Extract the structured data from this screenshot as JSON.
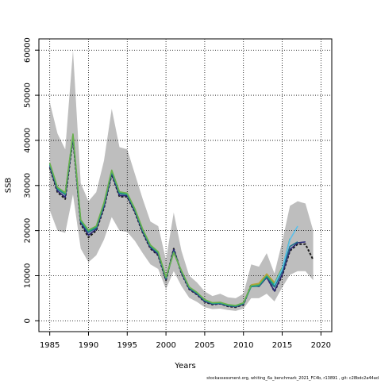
{
  "chart_data": {
    "type": "line",
    "xlabel": "Years",
    "ylabel": "SSB",
    "xlim": [
      1983.6,
      2021.4
    ],
    "ylim": [
      -2400,
      62500
    ],
    "x_ticks": [
      1985,
      1990,
      1995,
      2000,
      2005,
      2010,
      2015,
      2020
    ],
    "y_ticks": [
      0,
      10000,
      20000,
      30000,
      40000,
      50000,
      60000
    ],
    "grid": true,
    "grid_style": "dotted",
    "footnote": "stockassessment.org, whiting_6a_benchmark_2021_FC4b, r13891 , git: c28bdc2a44ad",
    "confidence_band": {
      "color": "#bebebe",
      "years": [
        1985,
        1986,
        1987,
        1988,
        1989,
        1990,
        1991,
        1992,
        1993,
        1994,
        1995,
        1996,
        1997,
        1998,
        1999,
        2000,
        2001,
        2002,
        2003,
        2004,
        2005,
        2006,
        2007,
        2008,
        2009,
        2010,
        2011,
        2012,
        2013,
        2014,
        2015,
        2016,
        2017,
        2018,
        2019
      ],
      "upper": [
        48500,
        41500,
        38000,
        60000,
        30500,
        26500,
        28500,
        35500,
        47000,
        38500,
        38000,
        32500,
        27000,
        22000,
        21000,
        13500,
        24000,
        15500,
        10000,
        8500,
        6500,
        5500,
        6000,
        5200,
        5000,
        6000,
        12500,
        12000,
        15000,
        10500,
        17500,
        25500,
        26500,
        26000,
        20000
      ],
      "lower": [
        24500,
        20000,
        19500,
        28000,
        16000,
        13000,
        14500,
        18000,
        23000,
        20000,
        19700,
        17700,
        15000,
        12500,
        11500,
        7000,
        11000,
        7700,
        5100,
        4200,
        3000,
        2600,
        2700,
        2400,
        2200,
        2700,
        5000,
        5000,
        6000,
        4300,
        7400,
        10200,
        11000,
        11000,
        9000
      ]
    },
    "series": [
      {
        "color": "#1a1a1a",
        "x": [
          1985,
          1986,
          1987,
          1988,
          1989,
          1990,
          1991,
          1992,
          1993,
          1994,
          1995,
          1996,
          1997,
          1998,
          1999,
          2000,
          2001,
          2002,
          2003,
          2004,
          2005,
          2006,
          2007,
          2008,
          2009,
          2010,
          2011,
          2012,
          2013,
          2014,
          2015,
          2016,
          2017,
          2018,
          2019
        ],
        "y": [
          34000,
          28500,
          27000,
          40500,
          21500,
          18500,
          20000,
          25000,
          32500,
          27500,
          27500,
          24000,
          19500,
          16000,
          14500,
          9000,
          16000,
          10500,
          7000,
          5800,
          4200,
          3600,
          3800,
          3200,
          3000,
          3600,
          8000,
          7800,
          9800,
          6500,
          10000,
          15500,
          17000,
          17000,
          13500
        ]
      },
      {
        "color": "#2c2a7a",
        "x": [
          1985,
          1986,
          1987,
          1988,
          1989,
          1990,
          1991,
          1992,
          1993,
          1994,
          1995,
          1996,
          1997,
          1998,
          1999,
          2000,
          2001,
          2002,
          2003,
          2004,
          2005,
          2006,
          2007,
          2008,
          2009,
          2010,
          2011,
          2012,
          2013,
          2014,
          2015,
          2016,
          2017,
          2018
        ],
        "y": [
          34300,
          28800,
          27400,
          40800,
          21800,
          19000,
          20300,
          25300,
          32700,
          27800,
          27700,
          24200,
          19700,
          16200,
          14700,
          9200,
          15800,
          10700,
          7100,
          5900,
          4300,
          3700,
          3800,
          3300,
          3100,
          3700,
          7800,
          7600,
          9600,
          6600,
          10300,
          15800,
          17300,
          17500
        ]
      },
      {
        "color": "#1f6f8b",
        "x": [
          1985,
          1986,
          1987,
          1988,
          1989,
          1990,
          1991,
          1992,
          1993,
          1994,
          1995,
          1996,
          1997,
          1998,
          1999,
          2000,
          2001,
          2002,
          2003,
          2004,
          2005,
          2006,
          2007,
          2008,
          2009,
          2010,
          2011,
          2012,
          2013,
          2014,
          2015,
          2016,
          2017
        ],
        "y": [
          34600,
          29200,
          28000,
          41000,
          22000,
          19600,
          20600,
          25700,
          33000,
          28200,
          28000,
          24500,
          20000,
          16500,
          15000,
          9400,
          15300,
          10900,
          7300,
          6100,
          4500,
          3800,
          3900,
          3400,
          3200,
          3800,
          7600,
          7700,
          9800,
          7500,
          11000,
          16500,
          17500
        ]
      },
      {
        "color": "#22a884",
        "x": [
          1985,
          1986,
          1987,
          1988,
          1989,
          1990,
          1991,
          1992,
          1993,
          1994,
          1995,
          1996,
          1997,
          1998,
          1999,
          2000,
          2001,
          2002,
          2003,
          2004,
          2005,
          2006,
          2007,
          2008,
          2009,
          2010,
          2011,
          2012,
          2013,
          2014,
          2015,
          2016
        ],
        "y": [
          34800,
          29400,
          28200,
          41200,
          22200,
          19900,
          20800,
          26000,
          33200,
          28400,
          28100,
          24600,
          20100,
          16600,
          15100,
          9500,
          15200,
          11000,
          7400,
          6200,
          4600,
          3900,
          4000,
          3500,
          3300,
          3900,
          7700,
          7900,
          10000,
          7900,
          11400,
          18200
        ]
      },
      {
        "color": "#6ab04c",
        "x": [
          1985,
          1986,
          1987,
          1988,
          1989,
          1990,
          1991,
          1992,
          1993,
          1994,
          1995,
          1996,
          1997,
          1998,
          1999,
          2000,
          2001,
          2002,
          2003,
          2004,
          2005,
          2006,
          2007,
          2008,
          2009,
          2010,
          2011,
          2012,
          2013,
          2014,
          2015
        ],
        "y": [
          35000,
          29600,
          28400,
          41400,
          22400,
          20100,
          21000,
          26200,
          33400,
          28600,
          28300,
          24800,
          20300,
          16800,
          15300,
          9700,
          15100,
          11100,
          7500,
          6300,
          4700,
          4000,
          4100,
          3600,
          3400,
          4000,
          7900,
          8100,
          10300,
          8300,
          11800
        ]
      },
      {
        "color": "#b5a33a",
        "x": [
          2011,
          2012,
          2013,
          2014
        ],
        "y": [
          8000,
          8300,
          10400,
          8500
        ]
      },
      {
        "color": "#5bc0eb",
        "x": [
          2014,
          2015,
          2016,
          2017
        ],
        "y": [
          8000,
          11500,
          18000,
          21000
        ]
      }
    ]
  }
}
